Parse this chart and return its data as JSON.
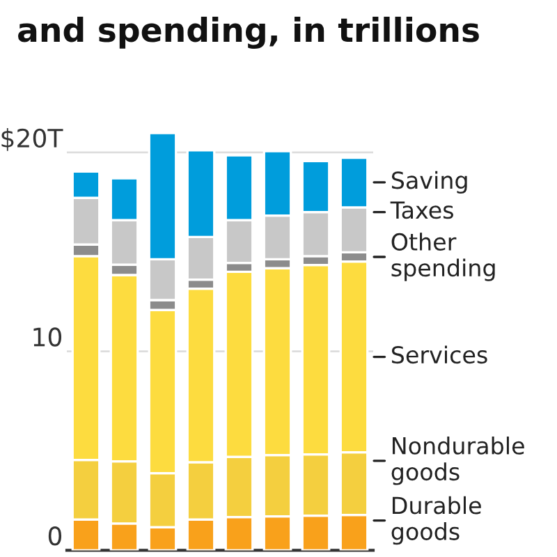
{
  "chart_data": {
    "type": "bar",
    "stacked": true,
    "title": "and spending, in trillions",
    "categories": [
      null,
      null,
      null,
      null,
      null,
      null,
      null,
      null
    ],
    "series": [
      {
        "name": "Durable goods",
        "color": "#f9a11b",
        "values": [
          1.55,
          1.35,
          1.16,
          1.55,
          1.67,
          1.71,
          1.74,
          1.78
        ]
      },
      {
        "name": "Nondurable goods",
        "color": "#f4cf3f",
        "values": [
          2.99,
          3.12,
          2.72,
          2.88,
          3.03,
          3.08,
          3.08,
          3.15
        ]
      },
      {
        "name": "Services",
        "color": "#fddc3f",
        "values": [
          10.25,
          9.37,
          8.2,
          8.72,
          9.3,
          9.39,
          9.52,
          9.59
        ]
      },
      {
        "name": "Other spending",
        "color": "#8c8c8c",
        "values": [
          0.58,
          0.52,
          0.5,
          0.46,
          0.45,
          0.45,
          0.45,
          0.46
        ]
      },
      {
        "name": "Taxes",
        "color": "#c8c8c8",
        "values": [
          2.35,
          2.24,
          2.05,
          2.14,
          2.15,
          2.2,
          2.21,
          2.26
        ]
      },
      {
        "name": "Saving",
        "color": "#009ddc",
        "values": [
          1.32,
          2.1,
          6.35,
          4.36,
          3.26,
          3.24,
          2.57,
          2.49
        ]
      }
    ],
    "ylim": [
      0,
      21
    ],
    "yticks": [
      0,
      10,
      {
        "value": 20,
        "label": "$20T"
      }
    ],
    "grid": "y"
  }
}
